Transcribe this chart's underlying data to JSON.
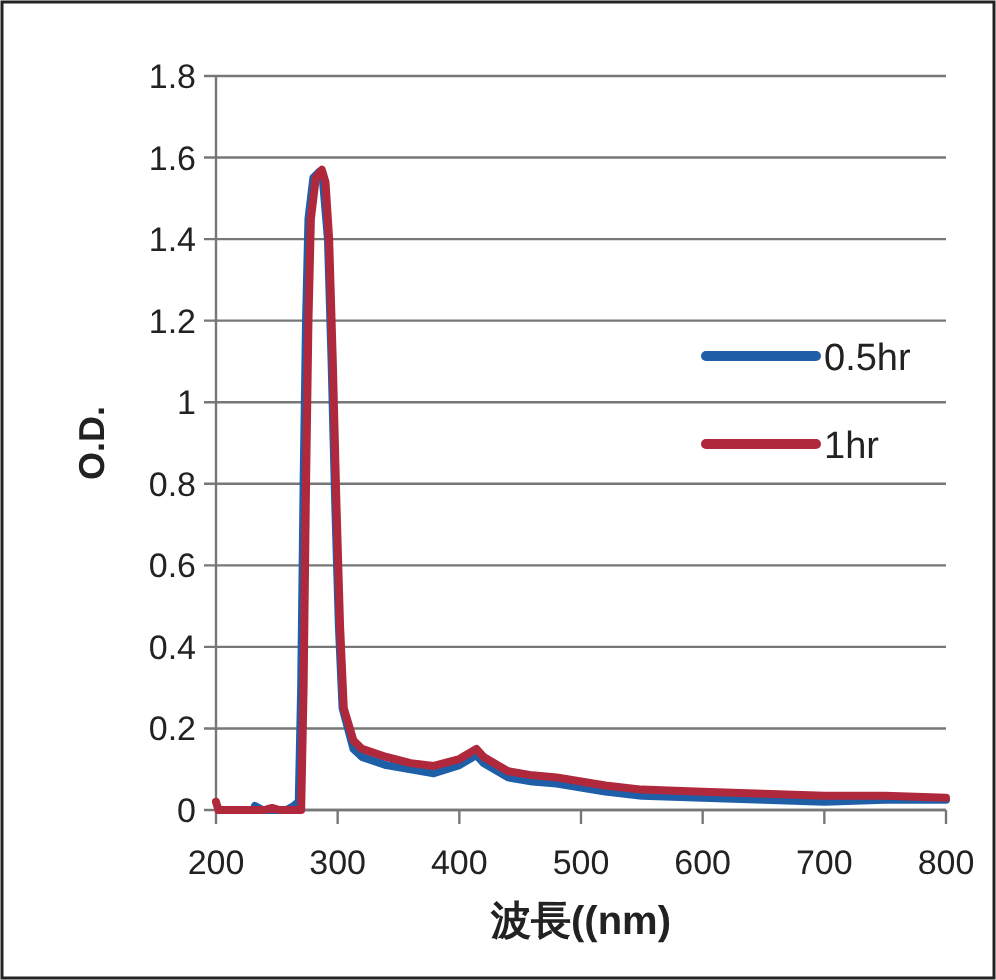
{
  "chart_data": {
    "type": "line",
    "xlabel": "波長((nm)",
    "ylabel": "O.D.",
    "xlim": [
      200,
      800
    ],
    "xticks": [
      200,
      300,
      400,
      500,
      600,
      700,
      800
    ],
    "ylim": [
      0,
      1.8
    ],
    "yticks": [
      0,
      0.2,
      0.4,
      0.6,
      0.8,
      1,
      1.2,
      1.4,
      1.6,
      1.8
    ],
    "grid": "y",
    "legend": "right",
    "line_style": "solid",
    "marker": "none",
    "series": [
      {
        "name": "0.5hr",
        "color": "#1f5fa8",
        "x": [
          232,
          238,
          250,
          258,
          264,
          268,
          270,
          272,
          274,
          276,
          280,
          285,
          288,
          292,
          295,
          298,
          301,
          304,
          313,
          320,
          340,
          360,
          379,
          400,
          414,
          420,
          440,
          460,
          480,
          500,
          520,
          550,
          600,
          650,
          700,
          750,
          800
        ],
        "values": [
          0.01,
          0.0,
          0.0,
          0.0,
          0.01,
          0.02,
          0.3,
          0.8,
          1.2,
          1.45,
          1.55,
          1.565,
          1.54,
          1.4,
          1.1,
          0.75,
          0.45,
          0.25,
          0.15,
          0.13,
          0.11,
          0.1,
          0.09,
          0.11,
          0.135,
          0.115,
          0.08,
          0.07,
          0.065,
          0.055,
          0.045,
          0.035,
          0.03,
          0.025,
          0.02,
          0.025,
          0.025
        ]
      },
      {
        "name": "1hr",
        "color": "#b0283c",
        "x": [
          200,
          202,
          240,
          246,
          252,
          270,
          272,
          274,
          276,
          278,
          282,
          287,
          290,
          293,
          296,
          299,
          302,
          305,
          313,
          320,
          340,
          360,
          379,
          400,
          414,
          420,
          440,
          460,
          480,
          500,
          520,
          550,
          600,
          650,
          700,
          750,
          800
        ],
        "values": [
          0.02,
          0.0,
          0.0,
          0.005,
          0.0,
          0.0,
          0.3,
          0.8,
          1.2,
          1.45,
          1.55,
          1.57,
          1.54,
          1.4,
          1.1,
          0.75,
          0.45,
          0.25,
          0.17,
          0.15,
          0.13,
          0.115,
          0.108,
          0.125,
          0.15,
          0.13,
          0.095,
          0.085,
          0.08,
          0.07,
          0.06,
          0.05,
          0.045,
          0.04,
          0.035,
          0.035,
          0.03
        ]
      }
    ]
  }
}
